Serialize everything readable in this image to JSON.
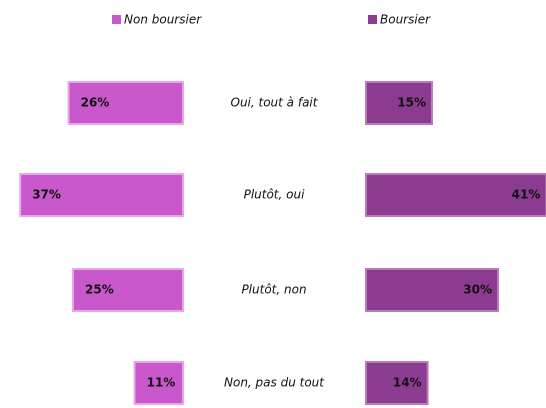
{
  "chart_data": {
    "type": "bar",
    "categories": [
      "Oui, tout à fait",
      "Plutôt, oui",
      "Plutôt, non",
      "Non, pas du tout"
    ],
    "series": [
      {
        "name": "Non boursier",
        "color": "#c858cc",
        "values": [
          26,
          37,
          25,
          11
        ],
        "value_labels": [
          "26%",
          "37%",
          "25%",
          "11%"
        ]
      },
      {
        "name": "Boursier",
        "color": "#8c3c90",
        "values": [
          15,
          41,
          30,
          14
        ],
        "value_labels": [
          "15%",
          "41%",
          "30%",
          "14%"
        ]
      }
    ]
  }
}
